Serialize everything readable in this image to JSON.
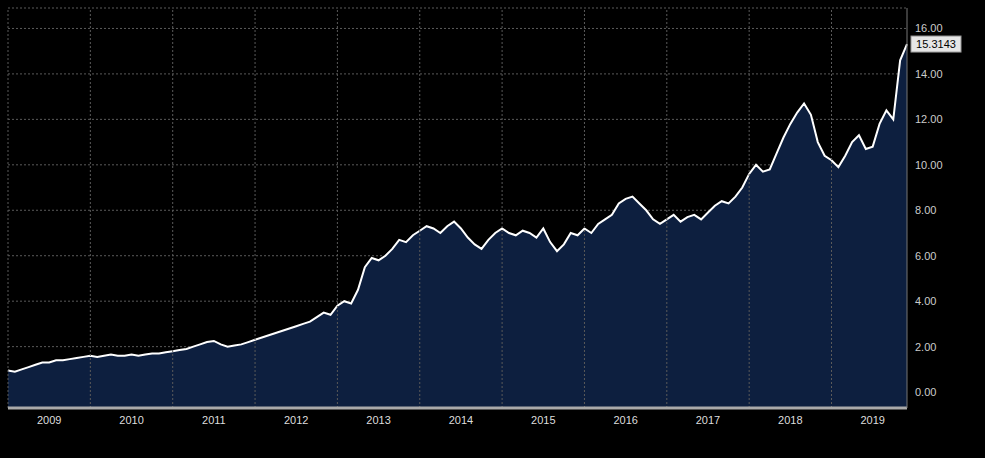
{
  "chart_data": {
    "type": "area",
    "categories": [
      null,
      null,
      null,
      null,
      null,
      null,
      "2009",
      null,
      null,
      null,
      null,
      null,
      null,
      null,
      null,
      null,
      null,
      null,
      "2010",
      null,
      null,
      null,
      null,
      null,
      null,
      null,
      null,
      null,
      null,
      null,
      "2011",
      null,
      null,
      null,
      null,
      null,
      null,
      null,
      null,
      null,
      null,
      null,
      "2012",
      null,
      null,
      null,
      null,
      null,
      null,
      null,
      null,
      null,
      null,
      null,
      "2013",
      null,
      null,
      null,
      null,
      null,
      null,
      null,
      null,
      null,
      null,
      null,
      "2014",
      null,
      null,
      null,
      null,
      null,
      null,
      null,
      null,
      null,
      null,
      null,
      "2015",
      null,
      null,
      null,
      null,
      null,
      null,
      null,
      null,
      null,
      null,
      null,
      "2016",
      null,
      null,
      null,
      null,
      null,
      null,
      null,
      null,
      null,
      null,
      null,
      "2017",
      null,
      null,
      null,
      null,
      null,
      null,
      null,
      null,
      null,
      null,
      null,
      "2018",
      null,
      null,
      null,
      null,
      null,
      null,
      null,
      null,
      null,
      null,
      null,
      "2019",
      null,
      null,
      null,
      null,
      null
    ],
    "values": [
      0.95,
      0.9,
      1.0,
      1.1,
      1.2,
      1.3,
      1.3,
      1.4,
      1.4,
      1.45,
      1.5,
      1.55,
      1.6,
      1.55,
      1.6,
      1.65,
      1.6,
      1.6,
      1.65,
      1.6,
      1.65,
      1.7,
      1.7,
      1.75,
      1.8,
      1.85,
      1.9,
      2.0,
      2.1,
      2.2,
      2.25,
      2.1,
      2.0,
      2.05,
      2.1,
      2.2,
      2.3,
      2.4,
      2.5,
      2.6,
      2.7,
      2.8,
      2.9,
      3.0,
      3.1,
      3.3,
      3.5,
      3.4,
      3.8,
      4.0,
      3.9,
      4.5,
      5.5,
      5.9,
      5.8,
      6.0,
      6.3,
      6.7,
      6.6,
      6.9,
      7.1,
      7.3,
      7.2,
      7.0,
      7.3,
      7.5,
      7.2,
      6.8,
      6.5,
      6.3,
      6.7,
      7.0,
      7.2,
      7.0,
      6.9,
      7.1,
      7.0,
      6.8,
      7.2,
      6.6,
      6.2,
      6.5,
      7.0,
      6.9,
      7.2,
      7.0,
      7.4,
      7.6,
      7.8,
      8.3,
      8.5,
      8.6,
      8.3,
      8.0,
      7.6,
      7.4,
      7.6,
      7.8,
      7.5,
      7.7,
      7.8,
      7.6,
      7.9,
      8.2,
      8.4,
      8.3,
      8.6,
      9.0,
      9.6,
      10.0,
      9.7,
      9.8,
      10.5,
      11.2,
      11.8,
      12.3,
      12.7,
      12.2,
      11.0,
      10.4,
      10.2,
      9.9,
      10.4,
      11.0,
      11.3,
      10.7,
      10.8,
      11.8,
      12.4,
      12.0,
      14.6,
      15.3143
    ],
    "color": "#ffffff",
    "ylim": [
      -0.7,
      16.9
    ],
    "yticks": [
      {
        "value": 0,
        "label": "0.00"
      },
      {
        "value": 2,
        "label": "2.00"
      },
      {
        "value": 4,
        "label": "4.00"
      },
      {
        "value": 6,
        "label": "6.00"
      },
      {
        "value": 8,
        "label": "8.00"
      },
      {
        "value": 10,
        "label": "10.00"
      },
      {
        "value": 12,
        "label": "12.00"
      },
      {
        "value": 14,
        "label": "14.00"
      },
      {
        "value": 16,
        "label": "16.00"
      }
    ],
    "grid": true,
    "annotation": {
      "value": 15.3143,
      "label": "15.3143"
    }
  }
}
